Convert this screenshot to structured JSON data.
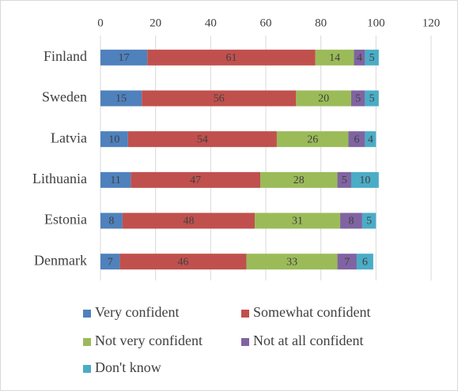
{
  "chart_data": {
    "type": "bar",
    "orientation": "horizontal",
    "stacked": true,
    "categories": [
      "Finland",
      "Sweden",
      "Latvia",
      "Lithuania",
      "Estonia",
      "Denmark"
    ],
    "series": [
      {
        "name": "Very confident",
        "color": "#4f81bd",
        "values": [
          17,
          15,
          10,
          11,
          8,
          7
        ]
      },
      {
        "name": "Somewhat confident",
        "color": "#c0504d",
        "values": [
          61,
          56,
          54,
          47,
          48,
          46
        ]
      },
      {
        "name": "Not very confident",
        "color": "#9bbb59",
        "values": [
          14,
          20,
          26,
          28,
          31,
          33
        ]
      },
      {
        "name": "Not at all confident",
        "color": "#8064a2",
        "values": [
          4,
          5,
          6,
          5,
          8,
          7
        ]
      },
      {
        "name": "Don't know",
        "color": "#4bacc6",
        "values": [
          5,
          5,
          4,
          10,
          5,
          6
        ]
      }
    ],
    "xlim": [
      0,
      120
    ],
    "xticks": [
      0,
      20,
      40,
      60,
      80,
      100,
      120
    ],
    "grid": true,
    "legend": "bottom"
  }
}
